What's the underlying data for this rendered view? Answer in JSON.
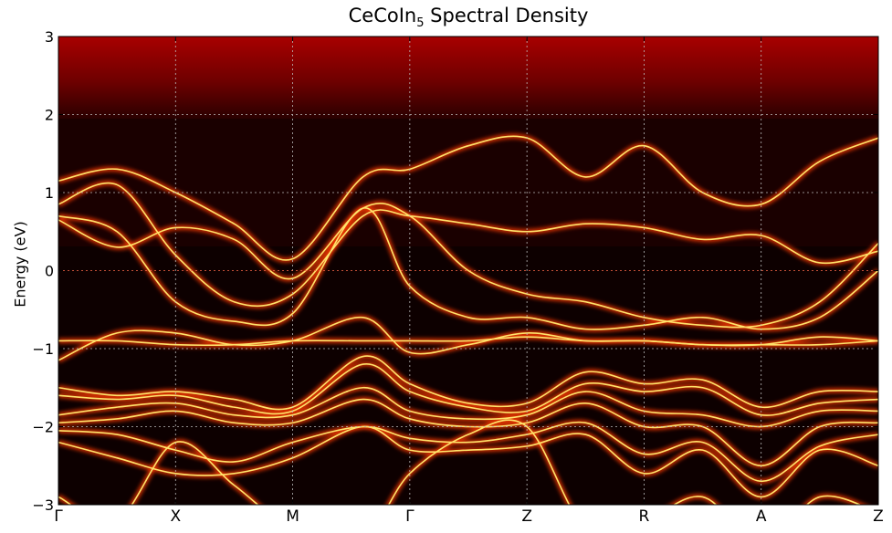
{
  "title": {
    "main": "CeCoIn",
    "sub": "5",
    "rest": " Spectral Density"
  },
  "chart_data": {
    "type": "heatmap",
    "title": "CeCoIn5 Spectral Density",
    "xlabel": "",
    "ylabel": "Energy (eV)",
    "ylim": [
      -3,
      3
    ],
    "yticks": [
      -3,
      -2,
      -1,
      0,
      1,
      2,
      3
    ],
    "kpath": [
      "Γ",
      "X",
      "M",
      "Γ",
      "Z",
      "R",
      "A",
      "Z"
    ],
    "fermi_level": 0,
    "grid": true,
    "colormap": "hot",
    "bands": [
      {
        "name": "b1",
        "values": [
          -2.9,
          -3.2,
          -2.2,
          -2.75,
          -3.3,
          -3.4,
          -2.6,
          -2.1,
          -2.0,
          -3.3,
          -3.2,
          -2.9,
          -3.5,
          -2.9,
          -3.1
        ]
      },
      {
        "name": "b2",
        "values": [
          -2.2,
          -2.4,
          -2.6,
          -2.6,
          -2.4,
          -2.0,
          -2.3,
          -2.3,
          -2.25,
          -2.1,
          -2.6,
          -2.3,
          -2.9,
          -2.3,
          -2.5
        ]
      },
      {
        "name": "b3",
        "values": [
          -2.05,
          -2.1,
          -2.3,
          -2.45,
          -2.2,
          -2.0,
          -2.15,
          -2.2,
          -2.1,
          -1.95,
          -2.35,
          -2.2,
          -2.7,
          -2.25,
          -2.1
        ]
      },
      {
        "name": "b4",
        "values": [
          -1.95,
          -1.9,
          -1.8,
          -1.95,
          -1.95,
          -1.65,
          -1.9,
          -2.0,
          -1.95,
          -1.7,
          -2.0,
          -2.0,
          -2.5,
          -2.0,
          -1.95
        ]
      },
      {
        "name": "b5",
        "values": [
          -1.85,
          -1.75,
          -1.7,
          -1.85,
          -1.85,
          -1.5,
          -1.8,
          -1.9,
          -1.85,
          -1.55,
          -1.8,
          -1.85,
          -2.0,
          -1.8,
          -1.8
        ]
      },
      {
        "name": "b6",
        "values": [
          -1.6,
          -1.65,
          -1.6,
          -1.75,
          -1.8,
          -1.2,
          -1.55,
          -1.75,
          -1.8,
          -1.45,
          -1.55,
          -1.5,
          -1.85,
          -1.7,
          -1.65
        ]
      },
      {
        "name": "b7",
        "values": [
          -1.5,
          -1.6,
          -1.55,
          -1.65,
          -1.75,
          -1.1,
          -1.45,
          -1.7,
          -1.7,
          -1.3,
          -1.45,
          -1.4,
          -1.75,
          -1.55,
          -1.55
        ]
      },
      {
        "name": "b8",
        "values": [
          -1.15,
          -0.8,
          -0.8,
          -0.95,
          -0.9,
          -0.6,
          -1.05,
          -0.95,
          -0.8,
          -0.9,
          -0.9,
          -0.95,
          -0.95,
          -0.85,
          -0.9
        ]
      },
      {
        "name": "b9",
        "values": [
          -0.9,
          -0.9,
          -0.95,
          -0.95,
          -0.9,
          -0.9,
          -0.9,
          -0.9,
          -0.85,
          -0.9,
          -0.9,
          -0.95,
          -0.95,
          -0.95,
          -0.9
        ]
      },
      {
        "name": "b10",
        "values": [
          0.7,
          0.5,
          -0.4,
          -0.65,
          -0.55,
          0.8,
          -0.2,
          -0.6,
          -0.6,
          -0.75,
          -0.7,
          -0.6,
          -0.75,
          -0.6,
          0.0
        ]
      },
      {
        "name": "b11",
        "values": [
          0.85,
          1.1,
          0.2,
          -0.4,
          -0.3,
          0.7,
          0.7,
          0.6,
          0.5,
          0.6,
          0.55,
          0.4,
          0.45,
          0.1,
          0.25
        ]
      },
      {
        "name": "b12",
        "values": [
          1.15,
          1.3,
          1.0,
          0.6,
          0.15,
          1.2,
          1.3,
          1.6,
          1.7,
          1.2,
          1.6,
          1.0,
          0.85,
          1.4,
          1.7
        ]
      },
      {
        "name": "b13",
        "values": [
          0.65,
          0.3,
          0.55,
          0.4,
          -0.1,
          0.8,
          0.7,
          0.0,
          -0.3,
          -0.4,
          -0.6,
          -0.7,
          -0.7,
          -0.4,
          0.35
        ]
      }
    ],
    "bands_x": [
      0,
      0.5,
      1,
      1.5,
      2,
      2.6,
      3,
      3.5,
      4,
      4.5,
      5,
      5.5,
      6,
      6.5,
      7
    ]
  }
}
